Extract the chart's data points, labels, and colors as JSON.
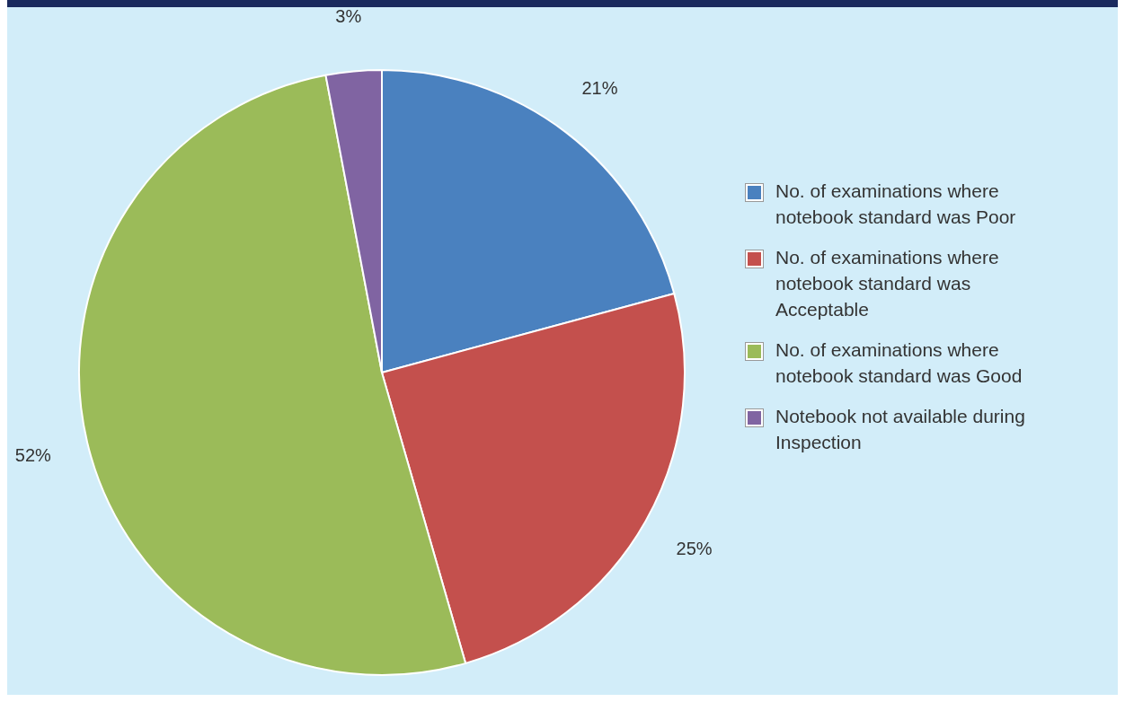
{
  "chart_data": {
    "type": "pie",
    "categories": [
      "No. of examinations where notebook standard was Poor",
      "No. of examinations where notebook standard was Acceptable",
      "No. of examinations where notebook standard was Good",
      "Notebook not available during Inspection"
    ],
    "values": [
      21,
      25,
      52,
      3
    ],
    "colors": [
      "#4a81bf",
      "#c4504d",
      "#9bbb59",
      "#8064a2"
    ],
    "value_labels": [
      "21%",
      "25%",
      "52%",
      "3%"
    ],
    "legend": "right"
  }
}
